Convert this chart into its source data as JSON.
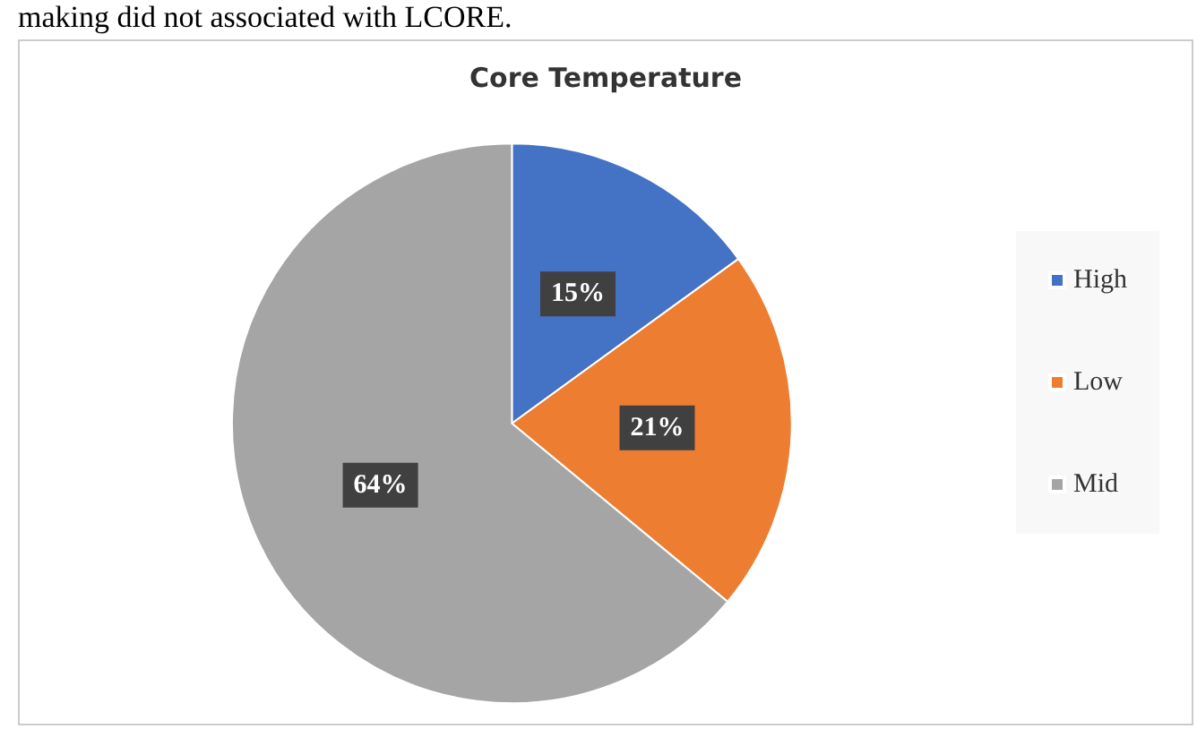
{
  "chart_data": {
    "type": "pie",
    "title": "Core Temperature",
    "annotations": [
      "making did not associated with LCORE."
    ],
    "categories": [
      "High",
      "Low",
      "Mid"
    ],
    "values": [
      15,
      21,
      64
    ],
    "value_labels": [
      "15%",
      "21%",
      "64%"
    ],
    "colors": [
      "#4472c4",
      "#ed7d31",
      "#a5a5a5"
    ],
    "legend": "right"
  }
}
